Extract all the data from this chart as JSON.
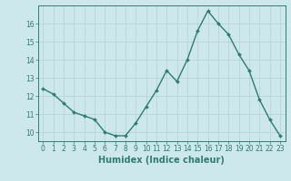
{
  "x": [
    0,
    1,
    2,
    3,
    4,
    5,
    6,
    7,
    8,
    9,
    10,
    11,
    12,
    13,
    14,
    15,
    16,
    17,
    18,
    19,
    20,
    21,
    22,
    23
  ],
  "y": [
    12.4,
    12.1,
    11.6,
    11.1,
    10.9,
    10.7,
    10.0,
    9.8,
    9.8,
    10.5,
    11.4,
    12.3,
    13.4,
    12.8,
    14.0,
    15.6,
    16.7,
    16.0,
    15.4,
    14.3,
    13.4,
    11.8,
    10.7,
    9.8
  ],
  "line_color": "#2e7d6e",
  "marker": "D",
  "marker_size": 2.0,
  "bg_color": "#cce8ec",
  "grid_color": "#b8d4d8",
  "axis_color": "#2e7d6e",
  "xlabel": "Humidex (Indice chaleur)",
  "xlim": [
    -0.5,
    23.5
  ],
  "ylim": [
    9.5,
    17.0
  ],
  "yticks": [
    10,
    11,
    12,
    13,
    14,
    15,
    16
  ],
  "xticks": [
    0,
    1,
    2,
    3,
    4,
    5,
    6,
    7,
    8,
    9,
    10,
    11,
    12,
    13,
    14,
    15,
    16,
    17,
    18,
    19,
    20,
    21,
    22,
    23
  ],
  "tick_fontsize": 5.5,
  "label_fontsize": 7,
  "line_width": 1.0
}
